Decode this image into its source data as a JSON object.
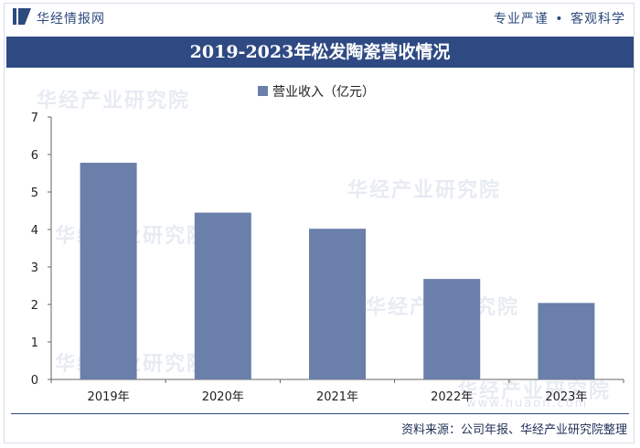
{
  "header": {
    "brand": "华经情报网",
    "tagline_left": "专业严谨",
    "tagline_sep": "•",
    "tagline_right": "客观科学"
  },
  "title": "2019-2023年松发陶瓷营收情况",
  "watermark": {
    "text": "华经产业研究院",
    "url": "www.huaon.com"
  },
  "source": "资料来源：公司年报、华经产业研究院整理",
  "colors": {
    "bar": "#6a7faa",
    "title_bg": "#2f4a83",
    "brand": "#2d4a7d"
  },
  "chart_data": {
    "type": "bar",
    "title": "2019-2023年松发陶瓷营收情况",
    "categories": [
      "2019年",
      "2020年",
      "2021年",
      "2022年",
      "2023年"
    ],
    "series": [
      {
        "name": "营业收入（亿元）",
        "values": [
          5.78,
          4.45,
          4.02,
          2.68,
          2.04
        ]
      }
    ],
    "xlabel": "",
    "ylabel": "",
    "ylim": [
      0,
      7
    ],
    "yticks": [
      0,
      1,
      2,
      3,
      4,
      5,
      6,
      7
    ],
    "legend_position": "top-center",
    "grid": false
  }
}
